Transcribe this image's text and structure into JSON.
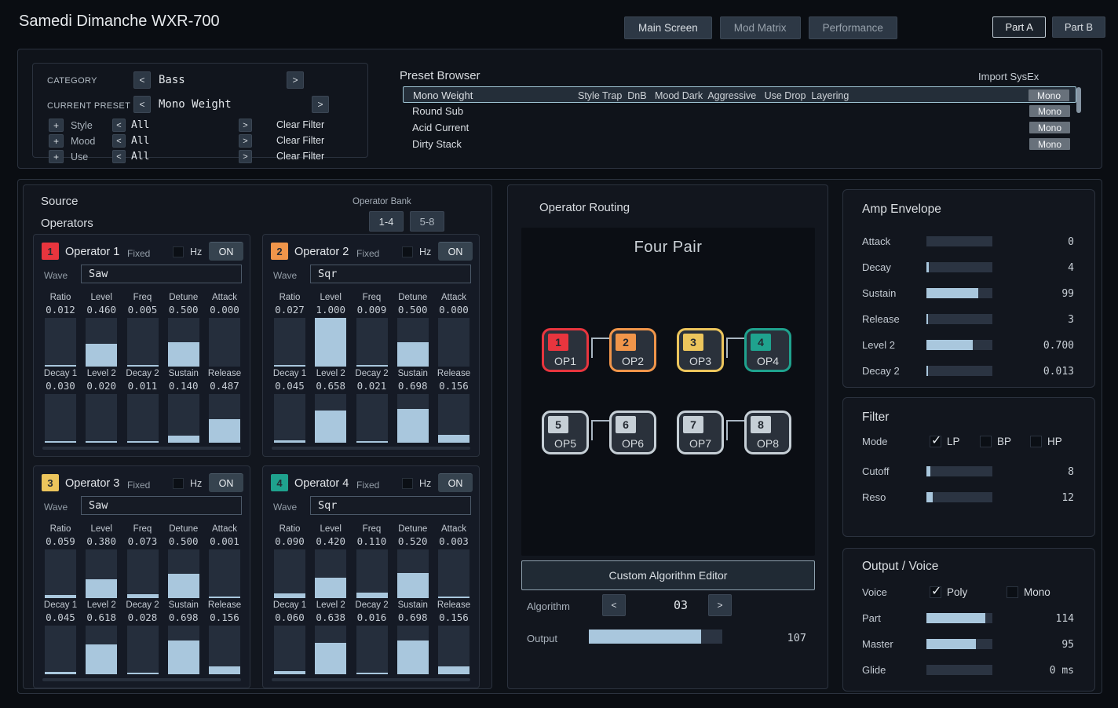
{
  "controls": {
    "prev": "<",
    "next": ">",
    "add": "+"
  },
  "header": {
    "title": "Samedi Dimanche WXR-700",
    "nav": [
      {
        "label": "Main Screen",
        "active": true
      },
      {
        "label": "Mod Matrix",
        "active": false
      },
      {
        "label": "Performance",
        "active": false
      }
    ],
    "parts": [
      {
        "label": "Part A",
        "active": true
      },
      {
        "label": "Part B",
        "active": false
      }
    ]
  },
  "preset_selector": {
    "category_label": "CATEGORY",
    "category_value": "Bass",
    "current_preset_label": "CURRENT PRESET",
    "current_preset_value": "Mono Weight",
    "filters": [
      {
        "name": "Style",
        "value": "All",
        "clear": "Clear Filter"
      },
      {
        "name": "Mood",
        "value": "All",
        "clear": "Clear Filter"
      },
      {
        "name": "Use",
        "value": "All",
        "clear": "Clear Filter"
      }
    ]
  },
  "preset_browser": {
    "title": "Preset Browser",
    "import_label": "Import SysEx",
    "rows": [
      {
        "name": "Mono Weight",
        "tags": "Style Trap  DnB   Mood Dark  Aggressive   Use Drop  Layering",
        "mode": "Mono",
        "selected": true
      },
      {
        "name": "Round Sub",
        "tags": "",
        "mode": "Mono",
        "selected": false
      },
      {
        "name": "Acid Current",
        "tags": "",
        "mode": "Mono",
        "selected": false
      },
      {
        "name": "Dirty Stack",
        "tags": "",
        "mode": "Mono",
        "selected": false
      }
    ]
  },
  "source": {
    "title": "Source",
    "subtitle": "Operators",
    "operator_bank_label": "Operator Bank",
    "bank_buttons": [
      {
        "label": "1-4",
        "active": true
      },
      {
        "label": "5-8",
        "active": false
      }
    ],
    "operators": [
      {
        "number": "1",
        "name": "Operator 1",
        "color": "#e8353e",
        "fixed_label": "Fixed",
        "hz_label": "Hz",
        "on_label": "ON",
        "wave_label": "Wave",
        "wave": "Saw",
        "sliders_row1": [
          {
            "label": "Ratio",
            "value": "0.012"
          },
          {
            "label": "Level",
            "value": "0.460"
          },
          {
            "label": "Freq",
            "value": "0.005"
          },
          {
            "label": "Detune",
            "value": "0.500"
          },
          {
            "label": "Attack",
            "value": "0.000"
          }
        ],
        "sliders_row2": [
          {
            "label": "Decay 1",
            "value": "0.030"
          },
          {
            "label": "Level 2",
            "value": "0.020"
          },
          {
            "label": "Decay 2",
            "value": "0.011"
          },
          {
            "label": "Sustain",
            "value": "0.140"
          },
          {
            "label": "Release",
            "value": "0.487"
          }
        ]
      },
      {
        "number": "2",
        "name": "Operator 2",
        "color": "#f0954a",
        "fixed_label": "Fixed",
        "hz_label": "Hz",
        "on_label": "ON",
        "wave_label": "Wave",
        "wave": "Sqr",
        "sliders_row1": [
          {
            "label": "Ratio",
            "value": "0.027"
          },
          {
            "label": "Level",
            "value": "1.000"
          },
          {
            "label": "Freq",
            "value": "0.009"
          },
          {
            "label": "Detune",
            "value": "0.500"
          },
          {
            "label": "Attack",
            "value": "0.000"
          }
        ],
        "sliders_row2": [
          {
            "label": "Decay 1",
            "value": "0.045"
          },
          {
            "label": "Level 2",
            "value": "0.658"
          },
          {
            "label": "Decay 2",
            "value": "0.021"
          },
          {
            "label": "Sustain",
            "value": "0.698"
          },
          {
            "label": "Release",
            "value": "0.156"
          }
        ]
      },
      {
        "number": "3",
        "name": "Operator 3",
        "color": "#ecc55c",
        "fixed_label": "Fixed",
        "hz_label": "Hz",
        "on_label": "ON",
        "wave_label": "Wave",
        "wave": "Saw",
        "sliders_row1": [
          {
            "label": "Ratio",
            "value": "0.059"
          },
          {
            "label": "Level",
            "value": "0.380"
          },
          {
            "label": "Freq",
            "value": "0.073"
          },
          {
            "label": "Detune",
            "value": "0.500"
          },
          {
            "label": "Attack",
            "value": "0.001"
          }
        ],
        "sliders_row2": [
          {
            "label": "Decay 1",
            "value": "0.045"
          },
          {
            "label": "Level 2",
            "value": "0.618"
          },
          {
            "label": "Decay 2",
            "value": "0.028"
          },
          {
            "label": "Sustain",
            "value": "0.698"
          },
          {
            "label": "Release",
            "value": "0.156"
          }
        ]
      },
      {
        "number": "4",
        "name": "Operator 4",
        "color": "#1fa28e",
        "fixed_label": "Fixed",
        "hz_label": "Hz",
        "on_label": "ON",
        "wave_label": "Wave",
        "wave": "Sqr",
        "sliders_row1": [
          {
            "label": "Ratio",
            "value": "0.090"
          },
          {
            "label": "Level",
            "value": "0.420"
          },
          {
            "label": "Freq",
            "value": "0.110"
          },
          {
            "label": "Detune",
            "value": "0.520"
          },
          {
            "label": "Attack",
            "value": "0.003"
          }
        ],
        "sliders_row2": [
          {
            "label": "Decay 1",
            "value": "0.060"
          },
          {
            "label": "Level 2",
            "value": "0.638"
          },
          {
            "label": "Decay 2",
            "value": "0.016"
          },
          {
            "label": "Sustain",
            "value": "0.698"
          },
          {
            "label": "Release",
            "value": "0.156"
          }
        ]
      }
    ]
  },
  "routing": {
    "title": "Operator Routing",
    "algorithm_name": "Four Pair",
    "ops": [
      {
        "number": "1",
        "label": "OP1",
        "color": "#e8353e"
      },
      {
        "number": "2",
        "label": "OP2",
        "color": "#f0954a"
      },
      {
        "number": "3",
        "label": "OP3",
        "color": "#ecc55c"
      },
      {
        "number": "4",
        "label": "OP4",
        "color": "#1fa28e"
      },
      {
        "number": "5",
        "label": "OP5",
        "color": "#c6cfd6"
      },
      {
        "number": "6",
        "label": "OP6",
        "color": "#c6cfd6"
      },
      {
        "number": "7",
        "label": "OP7",
        "color": "#c6cfd6"
      },
      {
        "number": "8",
        "label": "OP8",
        "color": "#c6cfd6"
      }
    ],
    "editor_button": "Custom Algorithm Editor",
    "algorithm_label": "Algorithm",
    "algorithm_value": "03",
    "output_label": "Output",
    "output_value": "107",
    "output_fill": 0.843
  },
  "amp_envelope": {
    "title": "Amp Envelope",
    "params": [
      {
        "label": "Attack",
        "value": "0",
        "fill": 0
      },
      {
        "label": "Decay",
        "value": "4",
        "fill": 0.031
      },
      {
        "label": "Sustain",
        "value": "99",
        "fill": 0.78
      },
      {
        "label": "Release",
        "value": "3",
        "fill": 0.024
      },
      {
        "label": "Level 2",
        "value": "0.700",
        "fill": 0.7
      },
      {
        "label": "Decay 2",
        "value": "0.013",
        "fill": 0.013
      }
    ]
  },
  "filter": {
    "title": "Filter",
    "mode_label": "Mode",
    "modes": [
      {
        "label": "LP",
        "checked": true
      },
      {
        "label": "BP",
        "checked": false
      },
      {
        "label": "HP",
        "checked": false
      }
    ],
    "params": [
      {
        "label": "Cutoff",
        "value": "8",
        "fill": 0.063
      },
      {
        "label": "Reso",
        "value": "12",
        "fill": 0.094
      }
    ]
  },
  "output_voice": {
    "title": "Output / Voice",
    "voice_label": "Voice",
    "modes": [
      {
        "label": "Poly",
        "checked": true
      },
      {
        "label": "Mono",
        "checked": false
      }
    ],
    "params": [
      {
        "label": "Part",
        "value": "114",
        "fill": 0.898
      },
      {
        "label": "Master",
        "value": "95",
        "fill": 0.748
      },
      {
        "label": "Glide",
        "value": "0 ms",
        "fill": 0
      }
    ]
  }
}
